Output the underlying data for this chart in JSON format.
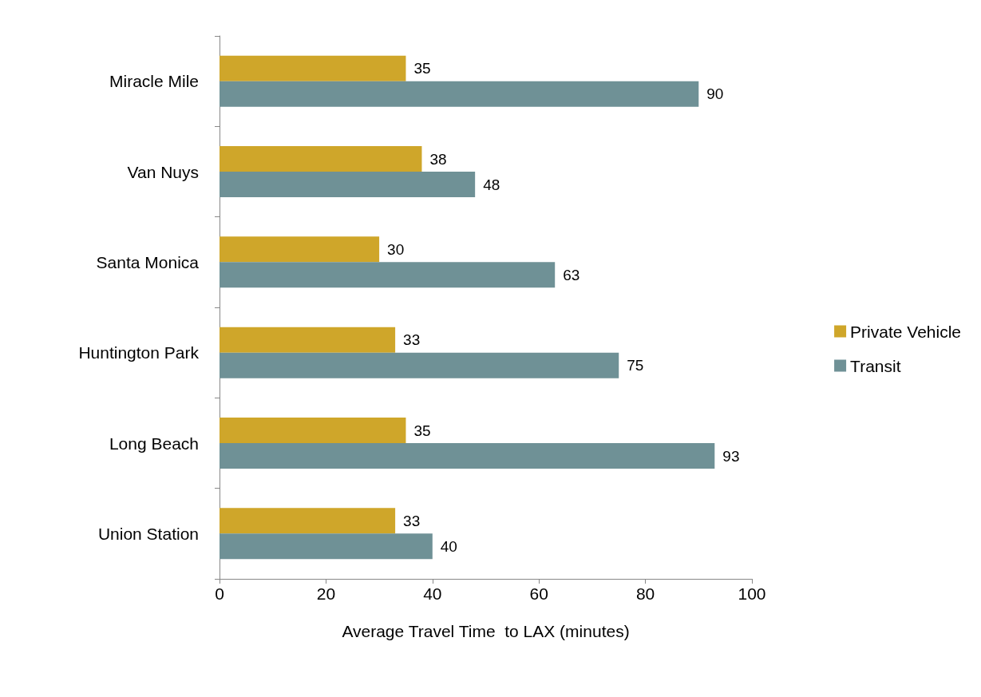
{
  "chart_data": {
    "type": "bar",
    "orientation": "horizontal",
    "xlabel": "Average Travel Time  to LAX (minutes)",
    "categories": [
      "Miracle Mile",
      "Van Nuys",
      "Santa Monica",
      "Huntington Park",
      "Long Beach",
      "Union Station"
    ],
    "series": [
      {
        "name": "Private Vehicle",
        "color": "#cfa62a",
        "values": [
          35,
          38,
          30,
          33,
          35,
          33
        ]
      },
      {
        "name": "Transit",
        "color": "#6f9196",
        "values": [
          90,
          48,
          63,
          75,
          93,
          40
        ]
      }
    ],
    "xlim": [
      0,
      100
    ],
    "xticks": [
      0,
      20,
      40,
      60,
      80,
      100
    ],
    "grid": false,
    "legend": "right",
    "data_labels": true
  }
}
